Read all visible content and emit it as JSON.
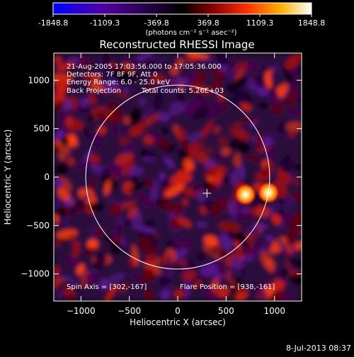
{
  "colorbar": {
    "ticks": [
      "-1848.8",
      "-1109.3",
      "-369.8",
      "369.8",
      "1109.3",
      "1848.8"
    ],
    "tick_values": [
      -1848.8,
      -1109.3,
      -369.8,
      369.8,
      1109.3,
      1848.8
    ],
    "range": [
      -1848.8,
      1848.8
    ],
    "colormap": [
      "#0000ff",
      "#5000a0",
      "#000000",
      "#8a0000",
      "#ff3000",
      "#ffb000",
      "#ffffff"
    ],
    "units_label": "(photons cm⁻² s⁻¹ asec⁻²)"
  },
  "title": "Reconstructed RHESSI Image",
  "info": {
    "time": "21-Aug-2005 17:03:56.000 to 17:05:36.000",
    "detectors": "Detectors: 7F 8F 9F, Att 0",
    "energy": "Energy Range: 6.0 - 25.0 keV",
    "method": "Back Projection",
    "counts": "Total counts: 5.26E+03",
    "spin_axis": "Spin Axis = [302,-167]",
    "flare_position": "Flare Position = [938,-161]"
  },
  "axes": {
    "xlabel": "Heliocentric X (arcsec)",
    "ylabel": "Heliocentric Y (arcsec)",
    "xlim": [
      -1280,
      1280
    ],
    "ylim": [
      -1280,
      1280
    ],
    "xticks": [
      -1000,
      -500,
      0,
      500,
      1000
    ],
    "yticks": [
      -1000,
      -500,
      0,
      500,
      1000
    ],
    "xtick_labels": [
      "−1000",
      "−500",
      "0",
      "500",
      "1000"
    ],
    "ytick_labels": [
      "−1000",
      "−500",
      "0",
      "500",
      "1000"
    ]
  },
  "solar_limb": {
    "center": [
      0,
      0
    ],
    "radius_arcsec": 950
  },
  "spin_axis_marker": [
    302,
    -167
  ],
  "sources": [
    {
      "x": 700,
      "y": -180
    },
    {
      "x": 938,
      "y": -161
    }
  ],
  "footer": "8-Jul-2013 08:37"
}
